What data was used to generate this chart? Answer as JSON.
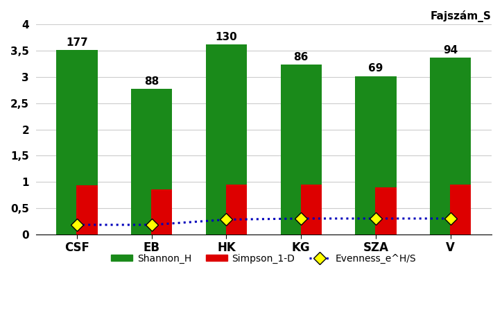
{
  "categories": [
    "CSF",
    "EB",
    "HK",
    "KG",
    "SZA",
    "V"
  ],
  "shannon_h": [
    3.52,
    2.78,
    3.62,
    3.24,
    3.02,
    3.37
  ],
  "simpson_1d": [
    0.93,
    0.86,
    0.95,
    0.95,
    0.9,
    0.95
  ],
  "evenness": [
    0.18,
    0.18,
    0.28,
    0.3,
    0.3,
    0.3
  ],
  "fajszam": [
    177,
    88,
    130,
    86,
    69,
    94
  ],
  "bar_color_green": "#1a8a1a",
  "bar_color_red": "#dd0000",
  "line_color_blue": "#0000bb",
  "marker_color_yellow": "#ffff00",
  "marker_edge_color": "#000000",
  "label_top": "Fajszám_S",
  "legend_shannon": "Shannon_H",
  "legend_simpson": "Simpson_1-D",
  "legend_evenness": "Evenness_e^H/S",
  "ylim": [
    0,
    4
  ],
  "yticks": [
    0,
    0.5,
    1,
    1.5,
    2,
    2.5,
    3,
    3.5,
    4
  ],
  "ytick_labels": [
    "0",
    "0,5",
    "1",
    "1,5",
    "2",
    "2,5",
    "3",
    "3,5",
    "4"
  ],
  "green_bar_width": 0.55,
  "red_bar_width": 0.28,
  "background_color": "#ffffff",
  "grid_color": "#cccccc"
}
